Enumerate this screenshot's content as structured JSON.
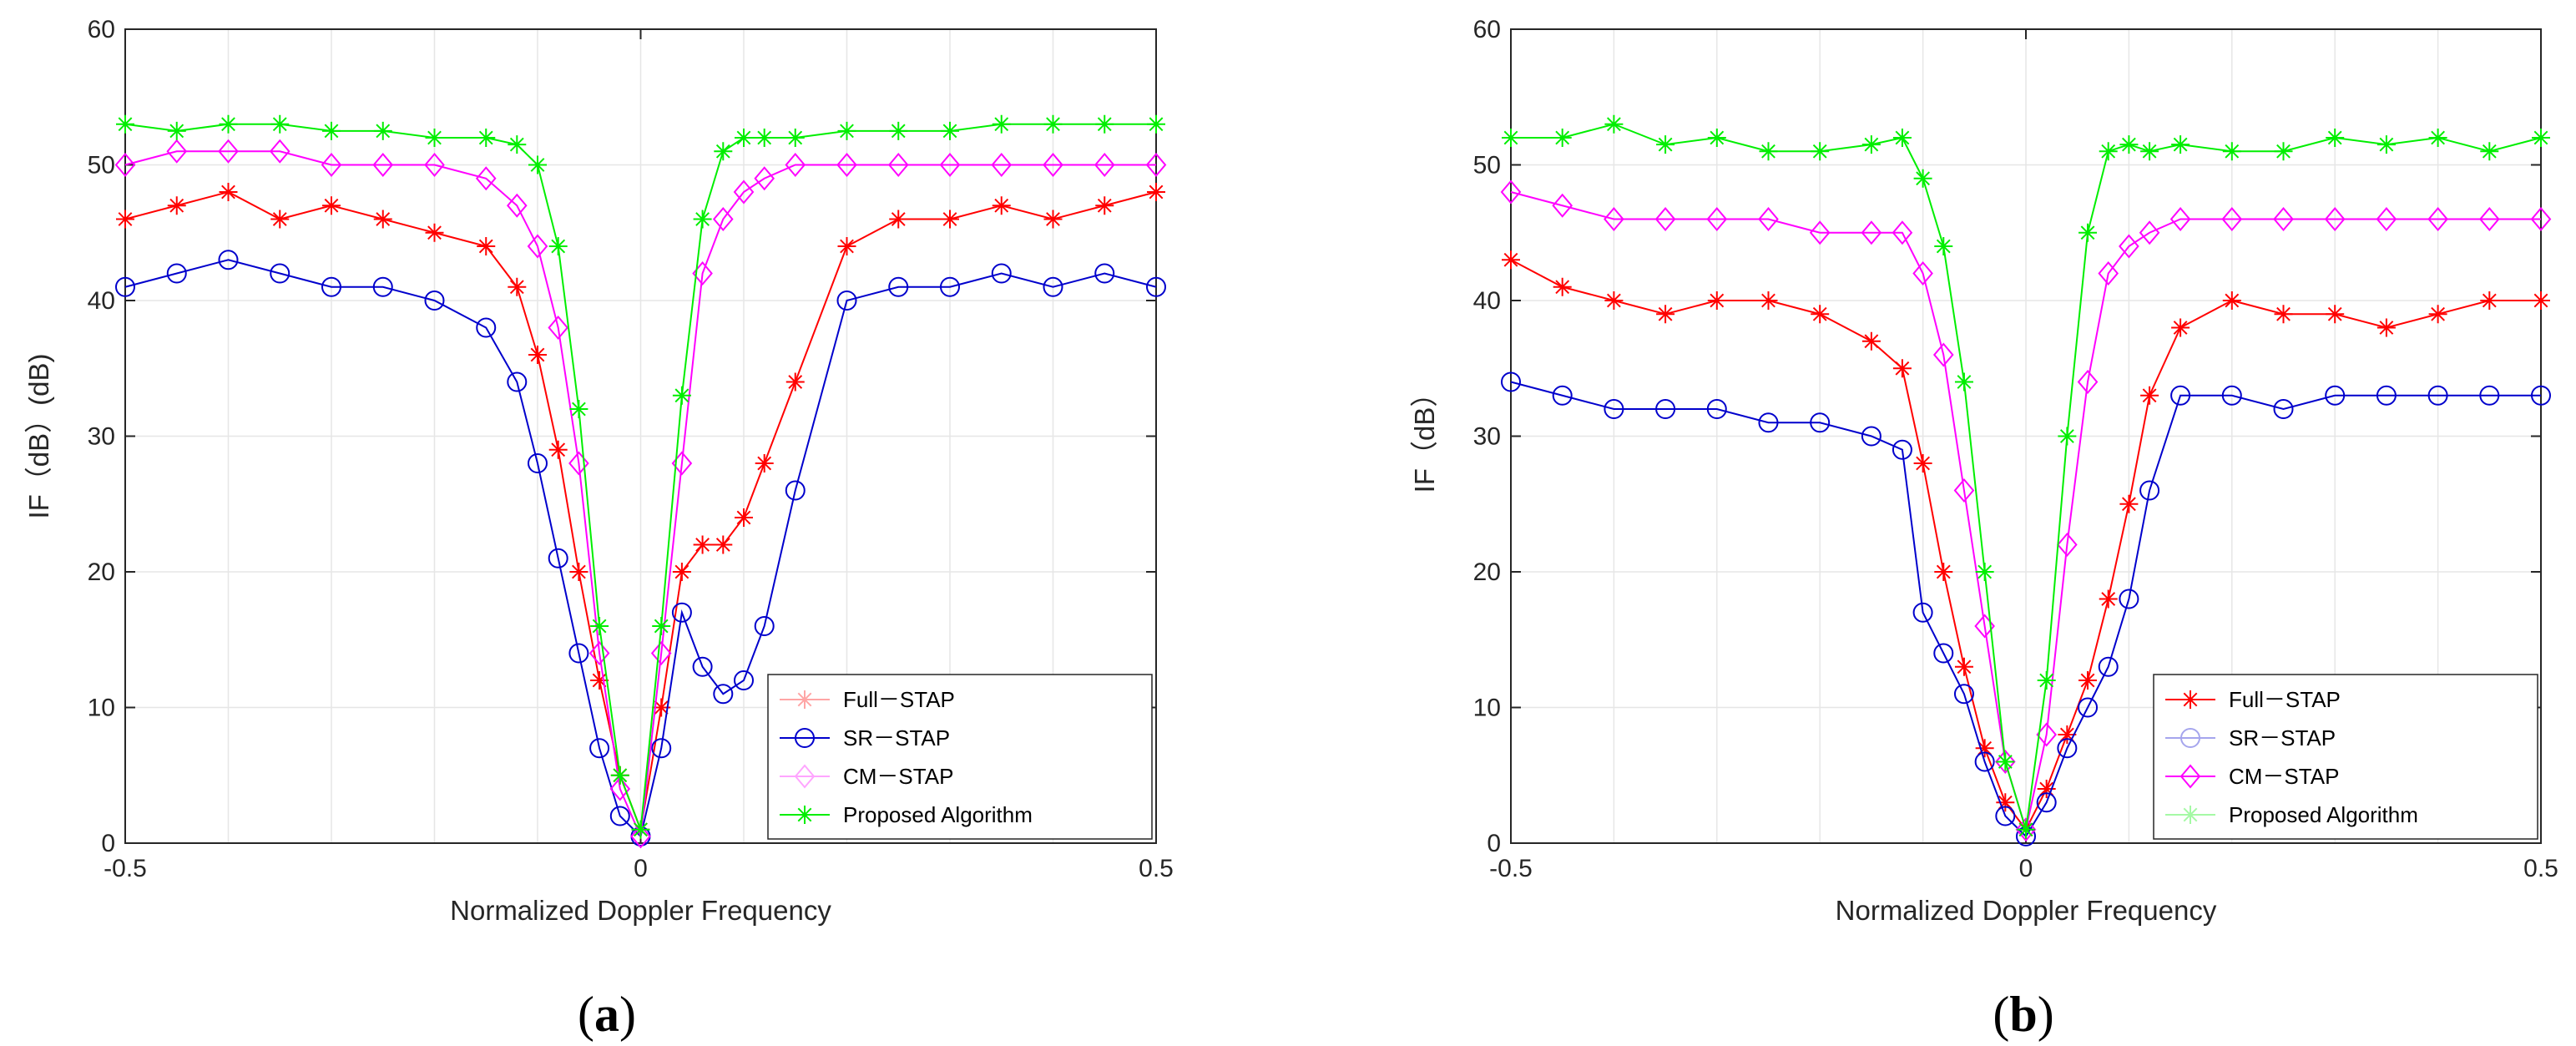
{
  "chart_data": [
    {
      "type": "line",
      "panel_label": "(a)",
      "panel_prefix": "(",
      "panel_letter": "a",
      "panel_suffix": ")",
      "xlabel": "Normalized Doppler Frequency",
      "ylabel": "IF（dB）(dB)",
      "xlim": [
        -0.5,
        0.5
      ],
      "ylim": [
        0,
        60
      ],
      "xticks": [
        -0.5,
        0,
        0.5
      ],
      "xtick_labels": [
        "-0.5",
        "0",
        "0.5"
      ],
      "yticks": [
        0,
        10,
        20,
        30,
        40,
        50,
        60
      ],
      "ytick_labels": [
        "0",
        "10",
        "20",
        "30",
        "40",
        "50",
        "60"
      ],
      "grid": true,
      "legend_position": "bottom-right",
      "legend_style": "faded",
      "x": [
        -0.5,
        -0.45,
        -0.4,
        -0.35,
        -0.3,
        -0.25,
        -0.2,
        -0.15,
        -0.12,
        -0.1,
        -0.08,
        -0.06,
        -0.04,
        -0.02,
        0,
        0.02,
        0.04,
        0.06,
        0.08,
        0.1,
        0.12,
        0.15,
        0.2,
        0.25,
        0.3,
        0.35,
        0.4,
        0.45,
        0.5
      ],
      "series": [
        {
          "name": "Full－STAP",
          "color": "#ff0000",
          "marker": "star",
          "values": [
            46,
            47,
            48,
            46,
            47,
            46,
            45,
            44,
            41,
            36,
            29,
            20,
            12,
            5,
            1,
            10,
            20,
            22,
            22,
            24,
            28,
            34,
            44,
            46,
            46,
            47,
            46,
            47,
            48
          ]
        },
        {
          "name": "SR－STAP",
          "color": "#0000cc",
          "marker": "circle",
          "values": [
            41,
            42,
            43,
            42,
            41,
            41,
            40,
            38,
            34,
            28,
            21,
            14,
            7,
            2,
            0.5,
            7,
            17,
            13,
            11,
            12,
            16,
            26,
            40,
            41,
            41,
            42,
            41,
            42,
            41
          ]
        },
        {
          "name": "CM－STAP",
          "color": "#ff00ff",
          "marker": "diamond",
          "values": [
            50,
            51,
            51,
            51,
            50,
            50,
            50,
            49,
            47,
            44,
            38,
            28,
            14,
            4,
            0.5,
            14,
            28,
            42,
            46,
            48,
            49,
            50,
            50,
            50,
            50,
            50,
            50,
            50,
            50
          ]
        },
        {
          "name": "Proposed Algorithm",
          "color": "#00ee00",
          "marker": "star",
          "values": [
            53,
            52.5,
            53,
            53,
            52.5,
            52.5,
            52,
            52,
            51.5,
            50,
            44,
            32,
            16,
            5,
            1,
            16,
            33,
            46,
            51,
            52,
            52,
            52,
            52.5,
            52.5,
            52.5,
            53,
            53,
            53,
            53
          ]
        }
      ]
    },
    {
      "type": "line",
      "panel_label": "(b)",
      "panel_prefix": "(",
      "panel_letter": "b",
      "panel_suffix": ")",
      "xlabel": "Normalized Doppler Frequency",
      "ylabel": "IF（dB）",
      "xlim": [
        -0.5,
        0.5
      ],
      "ylim": [
        0,
        60
      ],
      "xticks": [
        -0.5,
        0,
        0.5
      ],
      "xtick_labels": [
        "-0.5",
        "0",
        "0.5"
      ],
      "yticks": [
        0,
        10,
        20,
        30,
        40,
        50,
        60
      ],
      "ytick_labels": [
        "0",
        "10",
        "20",
        "30",
        "40",
        "50",
        "60"
      ],
      "grid": true,
      "legend_position": "bottom-right",
      "legend_style": "faded",
      "x": [
        -0.5,
        -0.45,
        -0.4,
        -0.35,
        -0.3,
        -0.25,
        -0.2,
        -0.15,
        -0.12,
        -0.1,
        -0.08,
        -0.06,
        -0.04,
        -0.02,
        0,
        0.02,
        0.04,
        0.06,
        0.08,
        0.1,
        0.12,
        0.15,
        0.2,
        0.25,
        0.3,
        0.35,
        0.4,
        0.45,
        0.5
      ],
      "series": [
        {
          "name": "Full－STAP",
          "color": "#ff0000",
          "marker": "star",
          "values": [
            43,
            41,
            40,
            39,
            40,
            40,
            39,
            37,
            35,
            28,
            20,
            13,
            7,
            3,
            1,
            4,
            8,
            12,
            18,
            25,
            33,
            38,
            40,
            39,
            39,
            38,
            39,
            40,
            40
          ]
        },
        {
          "name": "SR－STAP",
          "color": "#0000cc",
          "marker": "circle",
          "values": [
            34,
            33,
            32,
            32,
            32,
            31,
            31,
            30,
            29,
            17,
            14,
            11,
            6,
            2,
            0.5,
            3,
            7,
            10,
            13,
            18,
            26,
            33,
            33,
            32,
            33,
            33,
            33,
            33,
            33
          ]
        },
        {
          "name": "CM－STAP",
          "color": "#ff00ff",
          "marker": "diamond",
          "values": [
            48,
            47,
            46,
            46,
            46,
            46,
            45,
            45,
            45,
            42,
            36,
            26,
            16,
            6,
            1,
            8,
            22,
            34,
            42,
            44,
            45,
            46,
            46,
            46,
            46,
            46,
            46,
            46,
            46
          ]
        },
        {
          "name": "Proposed Algorithm",
          "color": "#00ee00",
          "marker": "star",
          "values": [
            52,
            52,
            53,
            51.5,
            52,
            51,
            51,
            51.5,
            52,
            49,
            44,
            34,
            20,
            6,
            1,
            12,
            30,
            45,
            51,
            51.5,
            51,
            51.5,
            51,
            51,
            52,
            51.5,
            52,
            51,
            52
          ]
        }
      ]
    }
  ]
}
